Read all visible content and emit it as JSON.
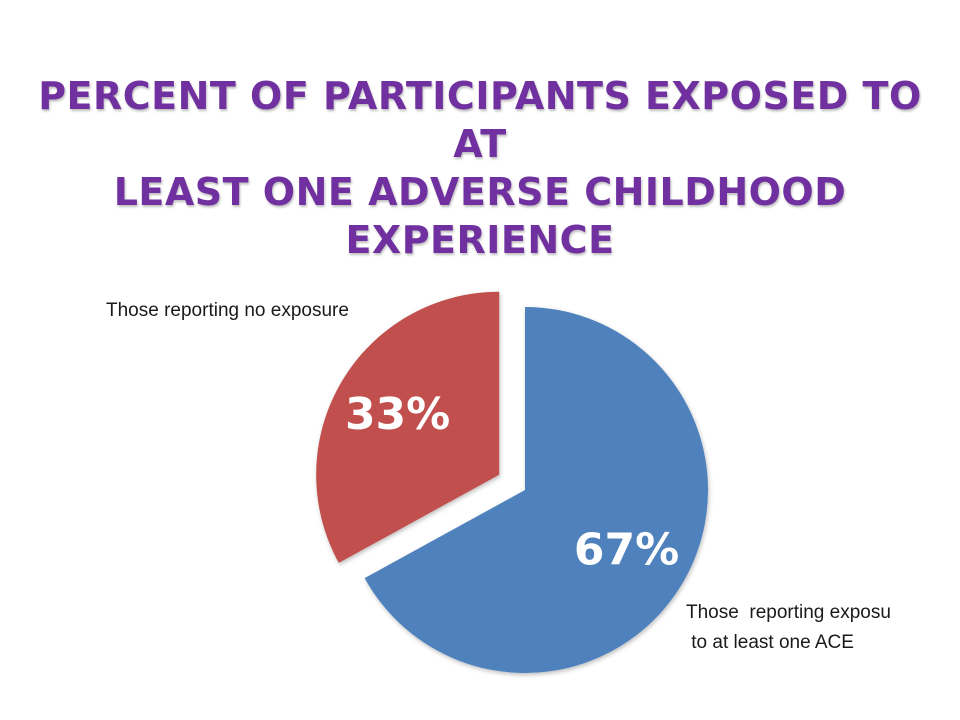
{
  "title": {
    "line1": "PERCENT OF PARTICIPANTS EXPOSED TO AT",
    "line2": "LEAST ONE ADVERSE CHILDHOOD EXPERIENCE"
  },
  "labels": {
    "no_exposure": "Those reporting no exposure",
    "exposure_line1": "Those  reporting exposu",
    "exposure_line2": " to at least one ACE"
  },
  "colors": {
    "title": "#7030a0",
    "exposed": "#4f81bd",
    "not_exposed": "#c0504d",
    "data_label": "#ffffff"
  },
  "chart_data": {
    "type": "pie",
    "title": "PERCENT OF PARTICIPANTS EXPOSED TO AT LEAST ONE ADVERSE CHILDHOOD EXPERIENCE",
    "slices": [
      {
        "label": "Those  reporting exposu to at least one ACE",
        "value": 67,
        "display": "67%",
        "color": "#4f81bd",
        "exploded": false
      },
      {
        "label": "Those reporting no exposure",
        "value": 33,
        "display": "33%",
        "color": "#c0504d",
        "exploded": true
      }
    ],
    "legend": "none",
    "data_labels": "inside"
  }
}
